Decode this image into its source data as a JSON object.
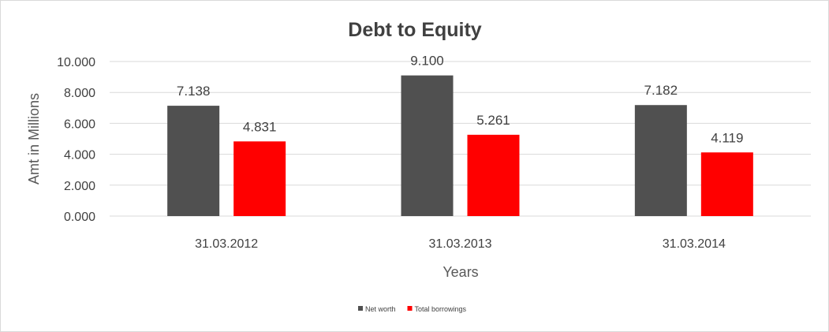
{
  "chart_data": {
    "type": "bar",
    "title": "Debt to Equity",
    "xlabel": "Years",
    "ylabel": "Amt in Millions",
    "categories": [
      "31.03.2012",
      "31.03.2013",
      "31.03.2014"
    ],
    "series": [
      {
        "name": "Net worth",
        "values": [
          7.138,
          9.1,
          7.182
        ],
        "labels": [
          "7.138",
          "9.100",
          "7.182"
        ],
        "color": "#505050"
      },
      {
        "name": "Total borrowings",
        "values": [
          4.831,
          5.261,
          4.119
        ],
        "labels": [
          "4.831",
          "5.261",
          "4.119"
        ],
        "color": "#ff0000"
      }
    ],
    "ylim": [
      0,
      10
    ],
    "yticks": [
      0,
      2,
      4,
      6,
      8,
      10
    ],
    "ytick_labels": [
      "0.000",
      "2.000",
      "4.000",
      "6.000",
      "8.000",
      "10.000"
    ],
    "grid": true,
    "legend": "bottom"
  }
}
